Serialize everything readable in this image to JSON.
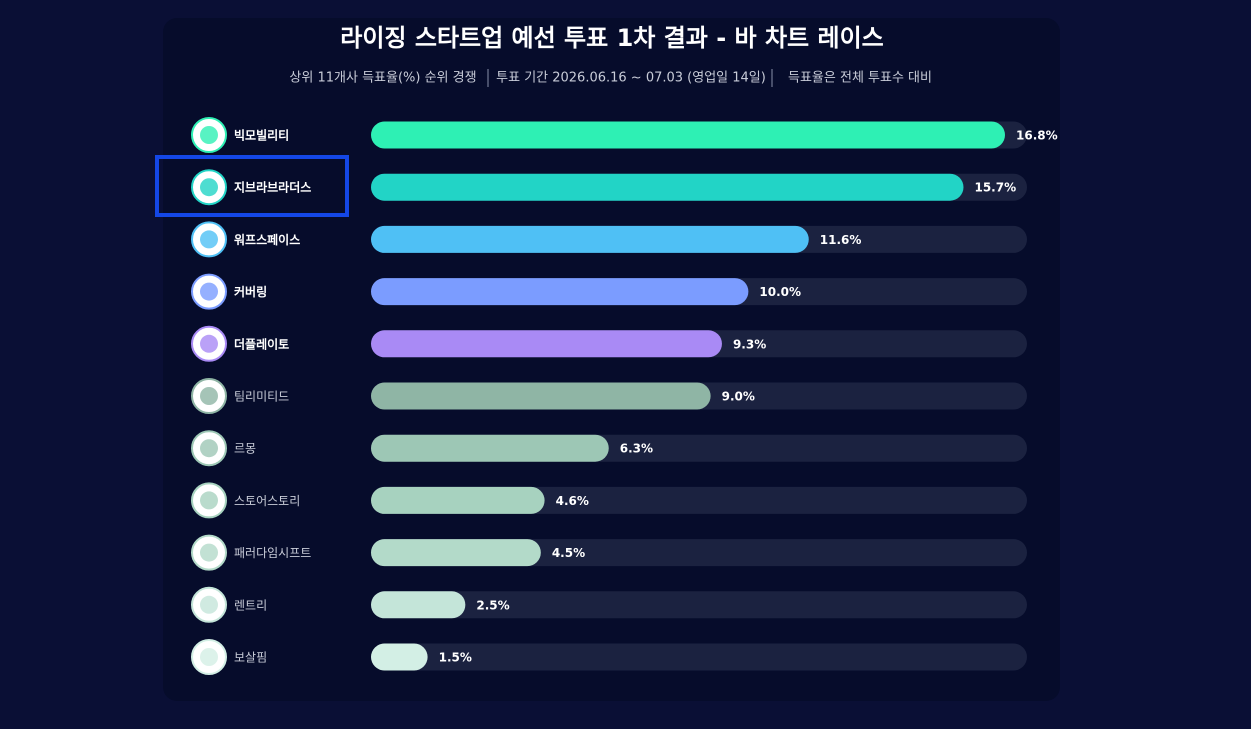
{
  "chart_data": {
    "type": "hbar",
    "title": "라이징 스타트업 예선 투표 1차 결과 - 바 차트 레이스",
    "subtitle": [
      "상위 11개사 득표율(%) 순위 경쟁",
      "투표 기간 2026.06.16 ~ 07.03 (영업일 14일)",
      "득표율은 전체 투표수 대비"
    ],
    "categories": [
      "빅모빌리티",
      "지브라브라더스",
      "워프스페이스",
      "커버링",
      "더플레이토",
      "팀리미티드",
      "르몽",
      "스토어스토리",
      "패러다임시프트",
      "렌트리",
      "보살핌"
    ],
    "values": [
      16.8,
      15.7,
      11.6,
      10.0,
      9.3,
      9.0,
      6.3,
      4.6,
      4.5,
      2.5,
      1.5
    ],
    "value_labels": [
      "16.8%",
      "15.7%",
      "11.6%",
      "10.0%",
      "9.3%",
      "9.0%",
      "6.3%",
      "4.6%",
      "4.5%",
      "2.5%",
      "1.5%"
    ],
    "colors": [
      "#2ef0b4",
      "#22d4c6",
      "#4fc0f5",
      "#7b9cff",
      "#a98af5",
      "#8fb5a5",
      "#9dc7b5",
      "#a7d2bf",
      "#b3dac9",
      "#c4e5d9",
      "#d3efe5"
    ]
  }
}
